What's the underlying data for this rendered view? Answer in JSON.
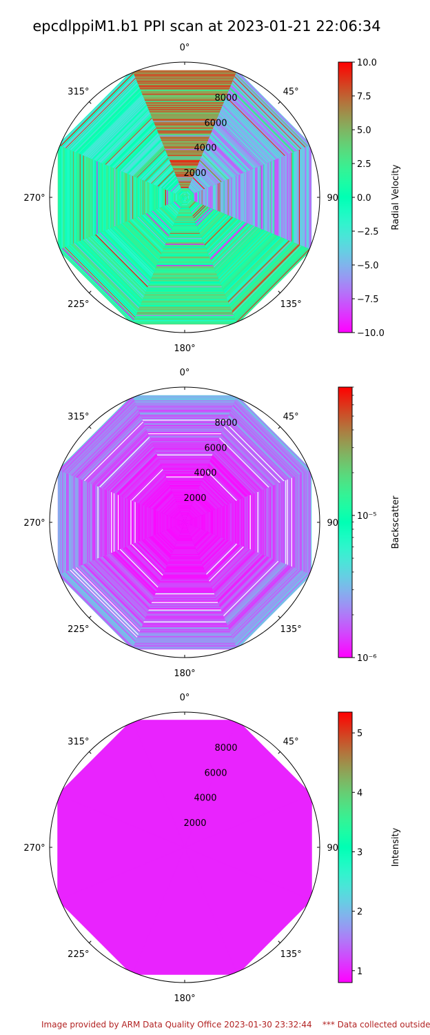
{
  "title": "epcdlppiM1.b1 PPI scan at 2023-01-21 22:06:34",
  "footer": "Image provided by ARM Data Quality Office 2023-01-30 23:32:44    *** Data collected outside",
  "chart_data": [
    {
      "type": "ppi_polar",
      "variable": "Radial Velocity",
      "colorbar_label": "Radial Velocity",
      "colormap": "rainbow",
      "scale": "linear",
      "clim": [
        -10.0,
        10.0
      ],
      "colorbar_ticks": [
        "10.0",
        "7.5",
        "5.0",
        "2.5",
        "0.0",
        "−2.5",
        "−5.0",
        "−7.5",
        "−10.0"
      ],
      "colorbar_tick_values": [
        10,
        7.5,
        5,
        2.5,
        0,
        -2.5,
        -5,
        -7.5,
        -10
      ],
      "angle_labels": [
        "0°",
        "45°",
        "90°",
        "135°",
        "180°",
        "225°",
        "270°",
        "315°"
      ],
      "radial_labels": [
        "2000",
        "4000",
        "6000",
        "8000"
      ],
      "radial_values": [
        2000,
        4000,
        6000,
        8000
      ],
      "rmax": 10000,
      "data_extent": 9400,
      "sectors": [
        {
          "azimuth": 0,
          "dominant": 6.5
        },
        {
          "azimuth": 45,
          "dominant": -5.0
        },
        {
          "azimuth": 90,
          "dominant": -5.5
        },
        {
          "azimuth": 135,
          "dominant": 1.2
        },
        {
          "azimuth": 180,
          "dominant": 2.0
        },
        {
          "azimuth": 225,
          "dominant": 0.5
        },
        {
          "azimuth": 270,
          "dominant": 0.8
        },
        {
          "azimuth": 315,
          "dominant": -1.5
        }
      ]
    },
    {
      "type": "ppi_polar",
      "variable": "Backscatter",
      "colorbar_label": "Backscatter",
      "colormap": "rainbow",
      "scale": "log",
      "clim": [
        1e-06,
        8e-05
      ],
      "colorbar_ticks": [
        "10⁻⁵",
        "10⁻⁶"
      ],
      "colorbar_tick_values": [
        1e-05,
        1e-06
      ],
      "angle_labels": [
        "0°",
        "45°",
        "90°",
        "135°",
        "180°",
        "225°",
        "270°",
        "315°"
      ],
      "radial_labels": [
        "2000",
        "4000",
        "6000",
        "8000"
      ],
      "radial_values": [
        2000,
        4000,
        6000,
        8000
      ],
      "rmax": 10000,
      "data_extent": 9400,
      "near_range_value": 1.1e-06,
      "far_range_value": 2.5e-06
    },
    {
      "type": "ppi_polar",
      "variable": "Intensity",
      "colorbar_label": "Intensity",
      "colormap": "rainbow",
      "scale": "linear",
      "clim": [
        0.8,
        5.35
      ],
      "colorbar_ticks": [
        "5",
        "4",
        "3",
        "2",
        "1"
      ],
      "colorbar_tick_values": [
        5,
        4,
        3,
        2,
        1
      ],
      "angle_labels": [
        "0°",
        "45°",
        "90°",
        "135°",
        "180°",
        "225°",
        "270°",
        "315°"
      ],
      "radial_labels": [
        "2000",
        "4000",
        "6000",
        "8000"
      ],
      "radial_values": [
        2000,
        4000,
        6000,
        8000
      ],
      "rmax": 10000,
      "data_extent": 9400,
      "uniform_value": 1.0
    }
  ],
  "colors": {
    "background": "#ffffff",
    "footer": "#b22222",
    "axis": "#000000",
    "gap": "#ffffff"
  }
}
